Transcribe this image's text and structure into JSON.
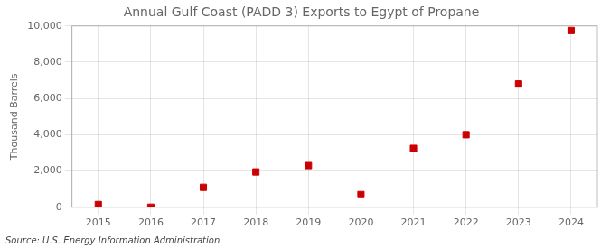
{
  "chart_data": {
    "type": "scatter",
    "title": "Annual Gulf Coast (PADD 3) Exports to Egypt of Propane",
    "ylabel": "Thousand Barrels",
    "annotations": [
      "Source: U.S. Energy Information Administration"
    ],
    "x": [
      2015,
      2016,
      2017,
      2018,
      2019,
      2020,
      2021,
      2022,
      2023,
      2024
    ],
    "values": [
      150,
      5,
      1100,
      1950,
      2300,
      700,
      3250,
      4000,
      6800,
      9750
    ],
    "color": "#cc0000",
    "marker": "square",
    "xlim": [
      2014.5,
      2024.5
    ],
    "xticks": [
      2015,
      2016,
      2017,
      2018,
      2019,
      2020,
      2021,
      2022,
      2023,
      2024
    ],
    "ylim": [
      0,
      10000
    ],
    "yticks": [
      0,
      {
        "value": 2000,
        "label": "2,000"
      },
      {
        "value": 4000,
        "label": "4,000"
      },
      {
        "value": 6000,
        "label": "6,000"
      },
      {
        "value": 8000,
        "label": "8,000"
      },
      {
        "value": 10000,
        "label": "10,000"
      }
    ],
    "grid": true
  }
}
